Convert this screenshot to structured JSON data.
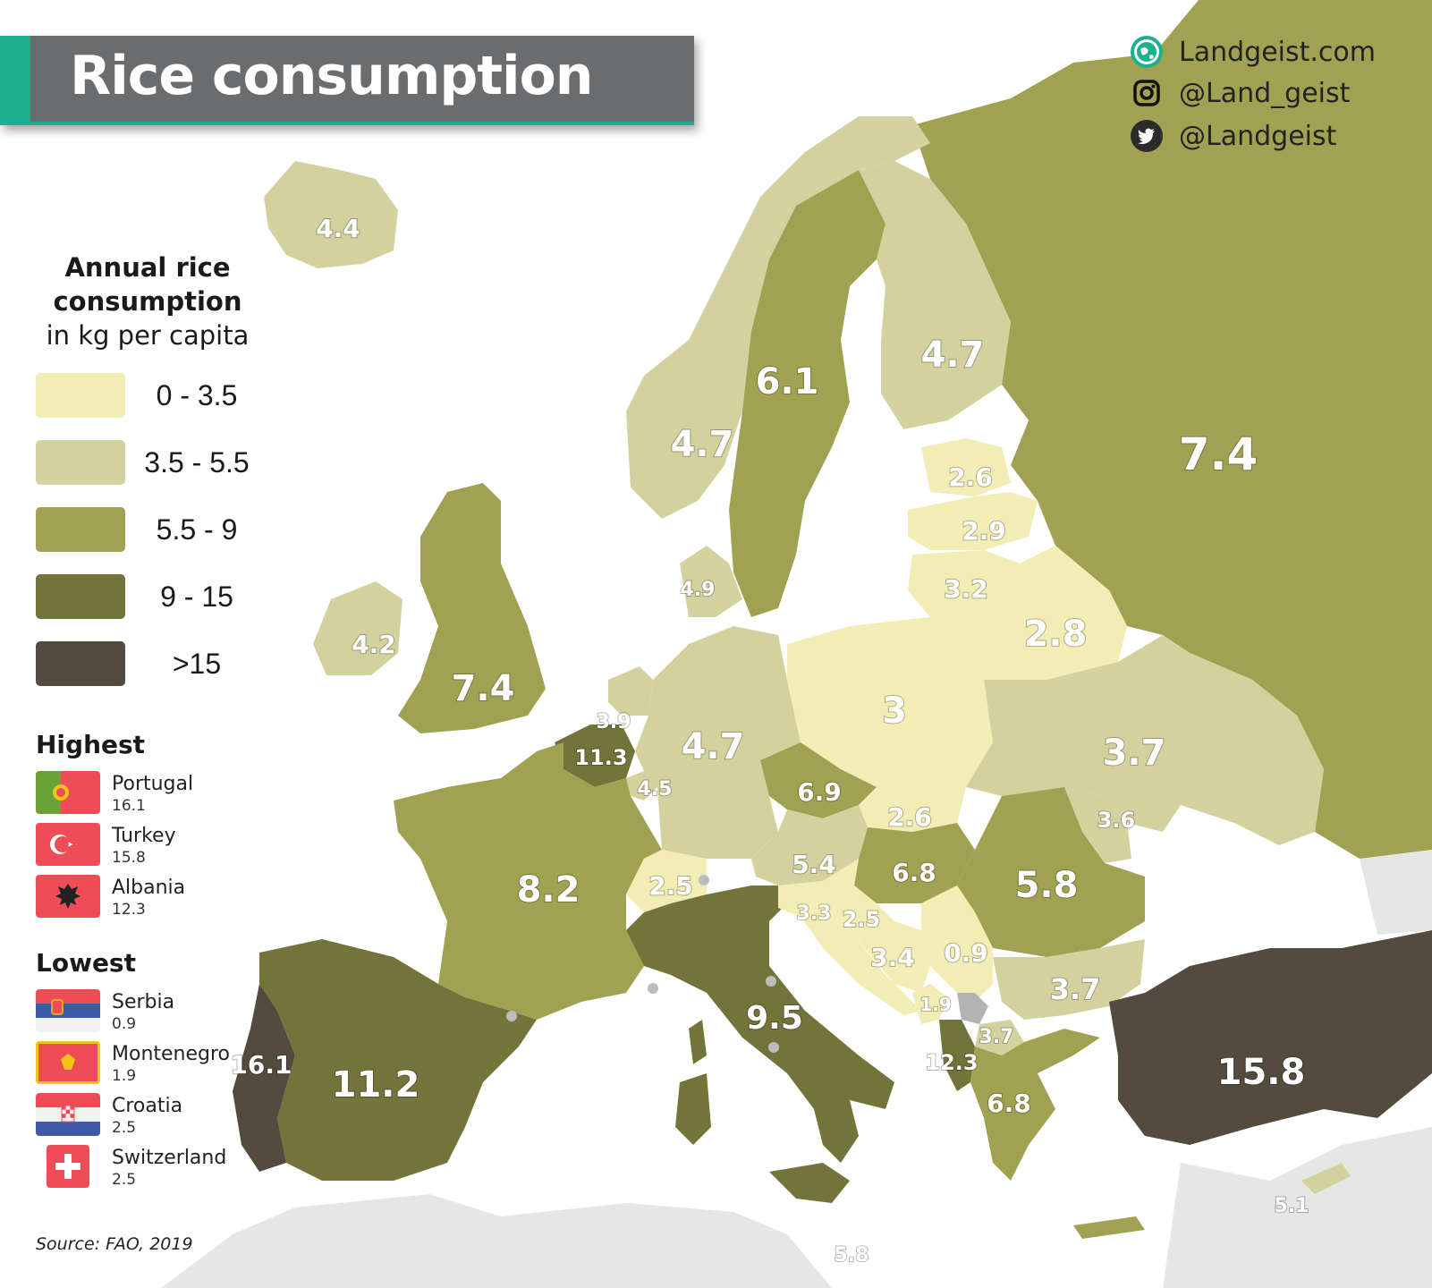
{
  "title": "Rice consumption",
  "social": [
    {
      "icon": "globe-icon",
      "text": "Landgeist.com"
    },
    {
      "icon": "instagram-icon",
      "text": "@Land_geist"
    },
    {
      "icon": "twitter-icon",
      "text": "@Landgeist"
    }
  ],
  "legend": {
    "title_line1": "Annual rice",
    "title_line2": "consumption",
    "title_line3": "in kg per capita",
    "bins": [
      {
        "label": "0  - 3.5",
        "color": "#f2edb4"
      },
      {
        "label": "3.5 - 5.5",
        "color": "#d3d29e"
      },
      {
        "label": "5.5 -  9",
        "color": "#a1a251"
      },
      {
        "label": "9  - 15",
        "color": "#72743a"
      },
      {
        "label": ">15",
        "color": "#534b3e"
      }
    ]
  },
  "highest": {
    "heading": "Highest",
    "items": [
      {
        "country": "Portugal",
        "value": "16.1"
      },
      {
        "country": "Turkey",
        "value": "15.8"
      },
      {
        "country": "Albania",
        "value": "12.3"
      }
    ]
  },
  "lowest": {
    "heading": "Lowest",
    "items": [
      {
        "country": "Serbia",
        "value": "0.9"
      },
      {
        "country": "Montenegro",
        "value": "1.9"
      },
      {
        "country": "Croatia",
        "value": "2.5"
      },
      {
        "country": "Switzerland",
        "value": "2.5"
      }
    ]
  },
  "source": "Source: FAO, 2019",
  "map_values": {
    "iceland": "4.4",
    "ireland": "4.2",
    "uk": "7.4",
    "norway": "4.7",
    "sweden": "6.1",
    "finland": "4.7",
    "russia": "7.4",
    "estonia": "2.6",
    "latvia": "2.9",
    "lithuania": "3.2",
    "belarus": "2.8",
    "denmark": "4.9",
    "netherlands": "3.9",
    "belgium": "11.3",
    "luxembourg": "4.5",
    "germany": "4.7",
    "poland": "3",
    "ukraine": "3.7",
    "czechia": "6.9",
    "slovakia": "2.6",
    "moldova": "3.6",
    "france": "8.2",
    "switzerland": "2.5",
    "austria": "5.4",
    "hungary": "6.8",
    "romania": "5.8",
    "slovenia": "3.3",
    "croatia": "2.5",
    "bosnia": "3.4",
    "serbia": "0.9",
    "montenegro": "1.9",
    "north_macedonia": "3.7",
    "albania": "12.3",
    "bulgaria": "3.7",
    "greece": "6.8",
    "italy": "9.5",
    "spain": "11.2",
    "portugal": "16.1",
    "turkey": "15.8",
    "cyprus": "5.1",
    "malta": "5.8"
  }
}
